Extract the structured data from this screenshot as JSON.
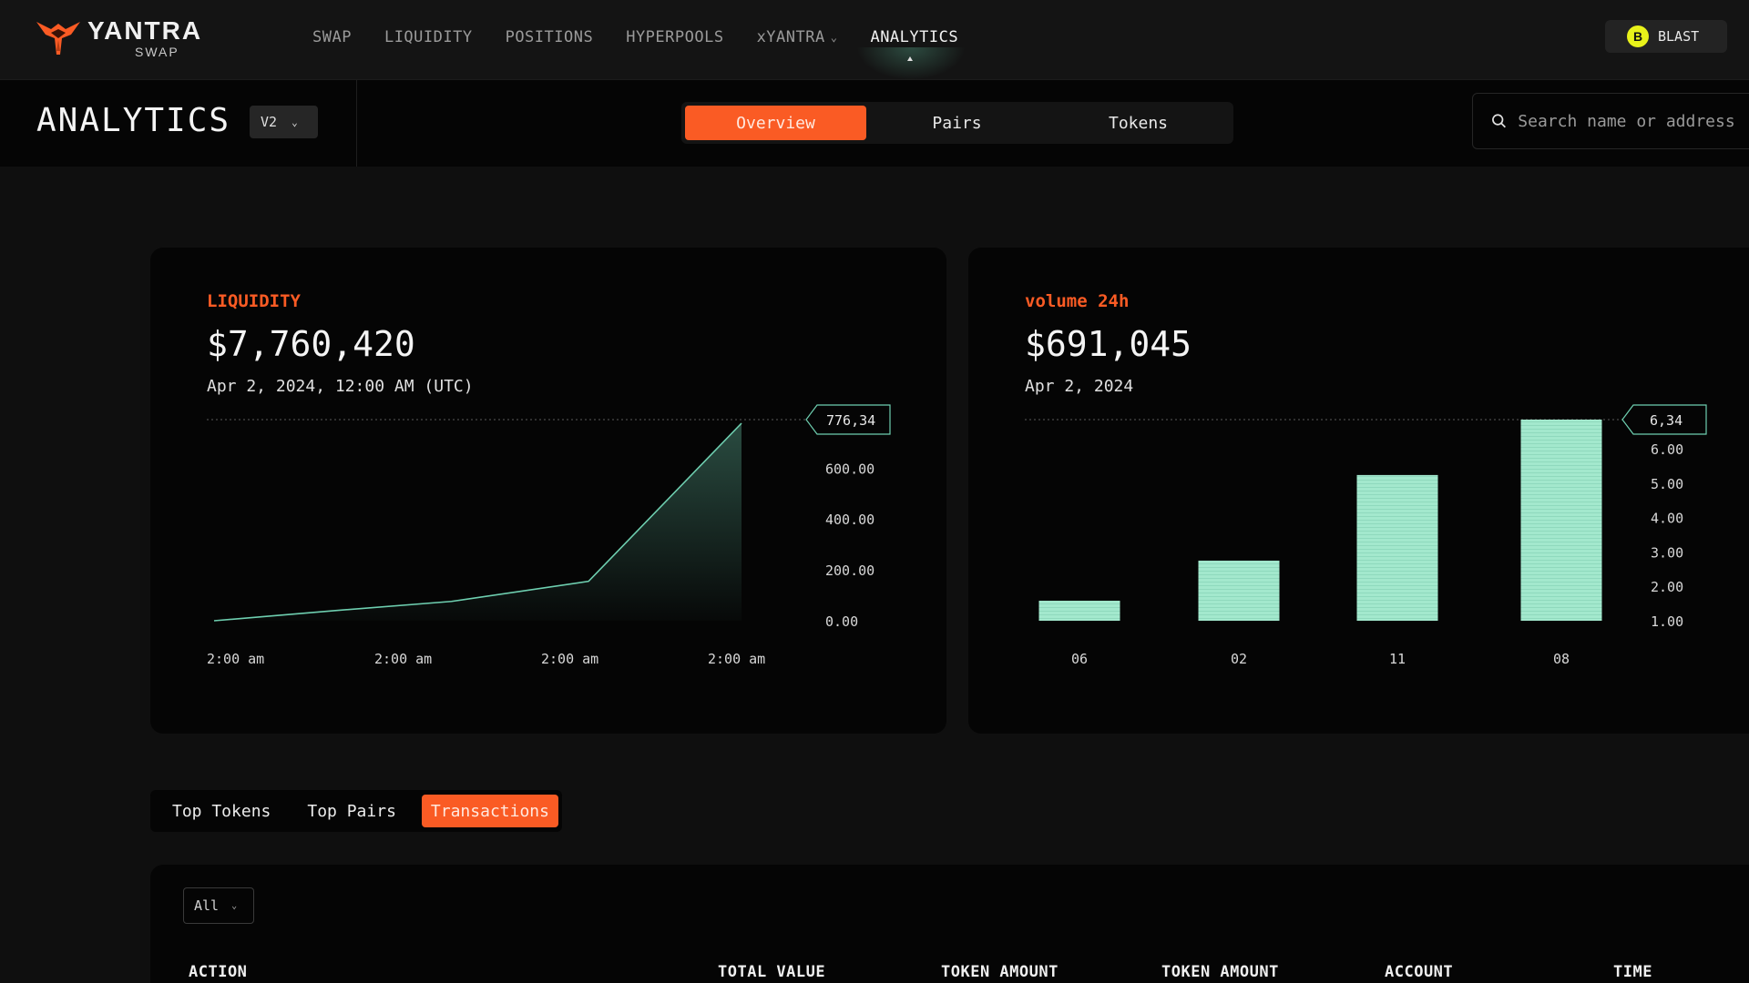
{
  "brand": {
    "name": "YANTRA",
    "sub": "SWAP"
  },
  "nav": {
    "items": [
      {
        "label": "SWAP",
        "name": "nav-swap"
      },
      {
        "label": "LIQUIDITY",
        "name": "nav-liquidity"
      },
      {
        "label": "POSITIONS",
        "name": "nav-positions"
      },
      {
        "label": "HYPERPOOLS",
        "name": "nav-hyperpools"
      },
      {
        "label": "xYANTRA",
        "name": "nav-xyantra"
      },
      {
        "label": "ANALYTICS",
        "name": "nav-analytics"
      }
    ],
    "active": "ANALYTICS",
    "network": {
      "label": "BLAST",
      "icon": "blast-icon",
      "icon_glyph": "B"
    }
  },
  "subheader": {
    "title": "ANALYTICS",
    "version": "V2",
    "tabs": [
      "Overview",
      "Pairs",
      "Tokens"
    ],
    "active_tab": "Overview",
    "search": {
      "placeholder": "Search name or address",
      "value": ""
    }
  },
  "liquidity": {
    "label": "LIQUIDITY",
    "value": "$7,760,420",
    "date": "Apr 2, 2024, 12:00 AM (UTC)"
  },
  "volume": {
    "label": "volume 24h",
    "value": "$691,045",
    "date": "Apr 2, 2024"
  },
  "chart_data": [
    {
      "type": "area",
      "title": "LIQUIDITY",
      "x_tick_labels": [
        "2:00 am",
        "2:00 am",
        "2:00 am",
        "2:00 am"
      ],
      "y_tick_labels": [
        "0.00",
        "200.00",
        "400.00",
        "600.00"
      ],
      "y_ticks": [
        0,
        200,
        400,
        600
      ],
      "ylim": [
        0,
        776.34
      ],
      "values": [
        0,
        40,
        76,
        155,
        776.34
      ],
      "x_positions": [
        0,
        0.23,
        0.45,
        0.71,
        1.0
      ],
      "marker_label": "776,34",
      "line_color": "#6ecfb0",
      "grid": false
    },
    {
      "type": "bar",
      "title": "volume 24h",
      "categories": [
        "06",
        "02",
        "11",
        "08"
      ],
      "values": [
        1.55,
        2.65,
        5.0,
        6.34
      ],
      "y_tick_labels": [
        "1.00",
        "2.00",
        "3.00",
        "4.00",
        "5.00",
        "6.00"
      ],
      "y_ticks": [
        1,
        2,
        3,
        4,
        5,
        6
      ],
      "ylim": [
        1,
        6.34
      ],
      "marker_label": "6,34",
      "bar_color": "#a3e8cd",
      "grid": false
    }
  ],
  "bottom": {
    "tabs": [
      "Top Tokens",
      "Top Pairs",
      "Transactions"
    ],
    "active_tab": "Transactions",
    "filter": "All",
    "columns": [
      "ACTION",
      "TOTAL VALUE",
      "TOKEN AMOUNT",
      "TOKEN AMOUNT",
      "ACCOUNT",
      "TIME"
    ]
  },
  "colors": {
    "accent": "#fa5b24",
    "chart": "#a3e8cd",
    "background": "#0f0f0f",
    "card": "#050505"
  }
}
